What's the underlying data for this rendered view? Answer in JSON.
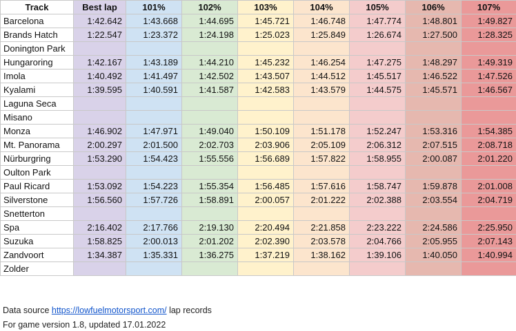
{
  "columns": [
    "Track",
    "Best lap",
    "101%",
    "102%",
    "103%",
    "104%",
    "105%",
    "106%",
    "107%"
  ],
  "rows": [
    {
      "track": "Barcelona",
      "values": [
        "1:42.642",
        "1:43.668",
        "1:44.695",
        "1:45.721",
        "1:46.748",
        "1:47.774",
        "1:48.801",
        "1:49.827"
      ]
    },
    {
      "track": "Brands Hatch",
      "values": [
        "1:22.547",
        "1:23.372",
        "1:24.198",
        "1:25.023",
        "1:25.849",
        "1:26.674",
        "1:27.500",
        "1:28.325"
      ]
    },
    {
      "track": "Donington Park",
      "values": [
        "",
        "",
        "",
        "",
        "",
        "",
        "",
        ""
      ]
    },
    {
      "track": "Hungaroring",
      "values": [
        "1:42.167",
        "1:43.189",
        "1:44.210",
        "1:45.232",
        "1:46.254",
        "1:47.275",
        "1:48.297",
        "1:49.319"
      ]
    },
    {
      "track": "Imola",
      "values": [
        "1:40.492",
        "1:41.497",
        "1:42.502",
        "1:43.507",
        "1:44.512",
        "1:45.517",
        "1:46.522",
        "1:47.526"
      ]
    },
    {
      "track": "Kyalami",
      "values": [
        "1:39.595",
        "1:40.591",
        "1:41.587",
        "1:42.583",
        "1:43.579",
        "1:44.575",
        "1:45.571",
        "1:46.567"
      ]
    },
    {
      "track": "Laguna Seca",
      "values": [
        "",
        "",
        "",
        "",
        "",
        "",
        "",
        ""
      ]
    },
    {
      "track": "Misano",
      "values": [
        "",
        "",
        "",
        "",
        "",
        "",
        "",
        ""
      ]
    },
    {
      "track": "Monza",
      "values": [
        "1:46.902",
        "1:47.971",
        "1:49.040",
        "1:50.109",
        "1:51.178",
        "1:52.247",
        "1:53.316",
        "1:54.385"
      ]
    },
    {
      "track": "Mt. Panorama",
      "values": [
        "2:00.297",
        "2:01.500",
        "2:02.703",
        "2:03.906",
        "2:05.109",
        "2:06.312",
        "2:07.515",
        "2:08.718"
      ]
    },
    {
      "track": "Nürburgring",
      "values": [
        "1:53.290",
        "1:54.423",
        "1:55.556",
        "1:56.689",
        "1:57.822",
        "1:58.955",
        "2:00.087",
        "2:01.220"
      ]
    },
    {
      "track": "Oulton Park",
      "values": [
        "",
        "",
        "",
        "",
        "",
        "",
        "",
        ""
      ]
    },
    {
      "track": "Paul Ricard",
      "values": [
        "1:53.092",
        "1:54.223",
        "1:55.354",
        "1:56.485",
        "1:57.616",
        "1:58.747",
        "1:59.878",
        "2:01.008"
      ]
    },
    {
      "track": "Silverstone",
      "values": [
        "1:56.560",
        "1:57.726",
        "1:58.891",
        "2:00.057",
        "2:01.222",
        "2:02.388",
        "2:03.554",
        "2:04.719"
      ]
    },
    {
      "track": "Snetterton",
      "values": [
        "",
        "",
        "",
        "",
        "",
        "",
        "",
        ""
      ]
    },
    {
      "track": "Spa",
      "values": [
        "2:16.402",
        "2:17.766",
        "2:19.130",
        "2:20.494",
        "2:21.858",
        "2:23.222",
        "2:24.586",
        "2:25.950"
      ]
    },
    {
      "track": "Suzuka",
      "values": [
        "1:58.825",
        "2:00.013",
        "2:01.202",
        "2:02.390",
        "2:03.578",
        "2:04.766",
        "2:05.955",
        "2:07.143"
      ]
    },
    {
      "track": "Zandvoort",
      "values": [
        "1:34.387",
        "1:35.331",
        "1:36.275",
        "1:37.219",
        "1:38.162",
        "1:39.106",
        "1:40.050",
        "1:40.994"
      ]
    },
    {
      "track": "Zolder",
      "values": [
        "",
        "",
        "",
        "",
        "",
        "",
        "",
        ""
      ]
    }
  ],
  "column_colors": [
    "#d9d2e9",
    "#cfe2f3",
    "#d9ead3",
    "#fff2cc",
    "#fce5cd",
    "#f4cccc",
    "#e6b8af",
    "#ea9999"
  ],
  "footer": {
    "source_prefix": "Data source ",
    "source_link": "https://lowfuelmotorsport.com/",
    "source_suffix": " lap records",
    "version_line": "For game version 1.8, updated 17.01.2022"
  }
}
